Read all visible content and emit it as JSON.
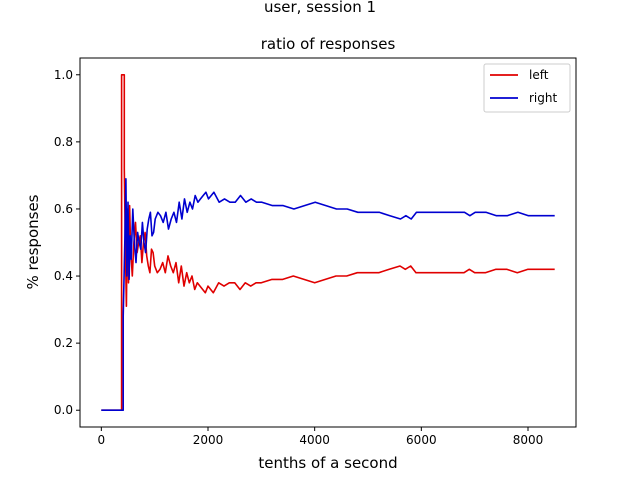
{
  "suptitle": "user,  session 1",
  "chart_data": {
    "type": "line",
    "title": "ratio of responses",
    "xlabel": "tenths of a second",
    "ylabel": "% responses",
    "xlim": [
      -400,
      8900
    ],
    "ylim": [
      -0.05,
      1.05
    ],
    "xticks": [
      0,
      2000,
      4000,
      6000,
      8000
    ],
    "xtick_labels": [
      "0",
      "2000",
      "4000",
      "6000",
      "8000"
    ],
    "yticks": [
      0.0,
      0.2,
      0.4,
      0.6,
      0.8,
      1.0
    ],
    "ytick_labels": [
      "0.0",
      "0.2",
      "0.4",
      "0.6",
      "0.8",
      "1.0"
    ],
    "grid": false,
    "legend": {
      "placement": "top-right"
    },
    "series": [
      {
        "name": "left",
        "color": "#e00000",
        "x": [
          0,
          360,
          380,
          380,
          430,
          430,
          450,
          470,
          490,
          510,
          530,
          550,
          580,
          610,
          640,
          670,
          700,
          730,
          760,
          790,
          820,
          850,
          880,
          910,
          940,
          970,
          1000,
          1050,
          1100,
          1150,
          1200,
          1250,
          1300,
          1350,
          1400,
          1450,
          1500,
          1550,
          1600,
          1650,
          1700,
          1750,
          1800,
          1850,
          1900,
          1950,
          2000,
          2100,
          2200,
          2300,
          2400,
          2500,
          2600,
          2700,
          2800,
          2900,
          3000,
          3200,
          3400,
          3600,
          3800,
          4000,
          4200,
          4400,
          4600,
          4800,
          5000,
          5200,
          5400,
          5600,
          5700,
          5800,
          5900,
          6000,
          6200,
          6400,
          6600,
          6800,
          6900,
          7000,
          7200,
          7400,
          7600,
          7800,
          8000,
          8200,
          8400,
          8500
        ],
        "y": [
          0.0,
          0.0,
          0.0,
          1.0,
          1.0,
          0.72,
          0.5,
          0.31,
          0.6,
          0.38,
          0.61,
          0.48,
          0.4,
          0.5,
          0.56,
          0.47,
          0.5,
          0.52,
          0.44,
          0.5,
          0.53,
          0.46,
          0.43,
          0.41,
          0.48,
          0.47,
          0.43,
          0.41,
          0.42,
          0.44,
          0.41,
          0.46,
          0.43,
          0.41,
          0.44,
          0.38,
          0.43,
          0.37,
          0.41,
          0.38,
          0.4,
          0.36,
          0.38,
          0.37,
          0.36,
          0.35,
          0.37,
          0.35,
          0.38,
          0.37,
          0.38,
          0.38,
          0.36,
          0.38,
          0.37,
          0.38,
          0.38,
          0.39,
          0.39,
          0.4,
          0.39,
          0.38,
          0.39,
          0.4,
          0.4,
          0.41,
          0.41,
          0.41,
          0.42,
          0.43,
          0.42,
          0.43,
          0.41,
          0.41,
          0.41,
          0.41,
          0.41,
          0.41,
          0.42,
          0.41,
          0.41,
          0.42,
          0.42,
          0.41,
          0.42,
          0.42,
          0.42,
          0.42
        ]
      },
      {
        "name": "right",
        "color": "#0000d0",
        "x": [
          0,
          360,
          400,
          410,
          410,
          440,
          460,
          480,
          500,
          520,
          540,
          560,
          590,
          620,
          650,
          680,
          710,
          740,
          770,
          800,
          830,
          860,
          890,
          920,
          950,
          980,
          1010,
          1060,
          1110,
          1160,
          1210,
          1260,
          1310,
          1360,
          1410,
          1460,
          1510,
          1560,
          1610,
          1660,
          1710,
          1760,
          1810,
          1860,
          1910,
          1960,
          2010,
          2110,
          2210,
          2310,
          2410,
          2510,
          2610,
          2710,
          2810,
          2910,
          3010,
          3210,
          3410,
          3610,
          3810,
          4010,
          4210,
          4410,
          4610,
          4810,
          5010,
          5210,
          5410,
          5610,
          5710,
          5810,
          5910,
          6010,
          6210,
          6410,
          6610,
          6810,
          6910,
          7010,
          7210,
          7410,
          7610,
          7810,
          8010,
          8210,
          8410,
          8500
        ],
        "y": [
          0.0,
          0.0,
          0.0,
          0.0,
          0.28,
          0.5,
          0.69,
          0.4,
          0.62,
          0.39,
          0.52,
          0.45,
          0.6,
          0.5,
          0.44,
          0.53,
          0.5,
          0.48,
          0.56,
          0.5,
          0.47,
          0.54,
          0.57,
          0.59,
          0.52,
          0.53,
          0.57,
          0.59,
          0.58,
          0.56,
          0.59,
          0.54,
          0.57,
          0.59,
          0.56,
          0.62,
          0.57,
          0.63,
          0.59,
          0.62,
          0.6,
          0.64,
          0.62,
          0.63,
          0.64,
          0.65,
          0.63,
          0.65,
          0.62,
          0.63,
          0.62,
          0.62,
          0.64,
          0.62,
          0.63,
          0.62,
          0.62,
          0.61,
          0.61,
          0.6,
          0.61,
          0.62,
          0.61,
          0.6,
          0.6,
          0.59,
          0.59,
          0.59,
          0.58,
          0.57,
          0.58,
          0.57,
          0.59,
          0.59,
          0.59,
          0.59,
          0.59,
          0.59,
          0.58,
          0.59,
          0.59,
          0.58,
          0.58,
          0.59,
          0.58,
          0.58,
          0.58,
          0.58
        ]
      }
    ]
  }
}
